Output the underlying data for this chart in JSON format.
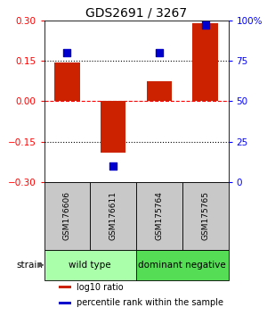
{
  "title": "GDS2691 / 3267",
  "samples": [
    "GSM176606",
    "GSM176611",
    "GSM175764",
    "GSM175765"
  ],
  "log10_ratio": [
    0.143,
    -0.19,
    0.073,
    0.29
  ],
  "percentile_rank": [
    80,
    10,
    80,
    97
  ],
  "ylim_left": [
    -0.3,
    0.3
  ],
  "ylim_right": [
    0,
    100
  ],
  "yticks_left": [
    -0.3,
    -0.15,
    0,
    0.15,
    0.3
  ],
  "yticks_right": [
    0,
    25,
    50,
    75,
    100
  ],
  "ytick_labels_right": [
    "0",
    "25",
    "50",
    "75",
    "100%"
  ],
  "hlines": [
    0.15,
    0.0,
    -0.15
  ],
  "hline_colors": [
    "black",
    "red",
    "black"
  ],
  "bar_color": "#cc2200",
  "dot_color": "#0000cc",
  "strain_groups": [
    {
      "label": "wild type",
      "start": 0,
      "end": 2,
      "color": "#aaffaa"
    },
    {
      "label": "dominant negative",
      "start": 2,
      "end": 4,
      "color": "#55dd55"
    }
  ],
  "legend_items": [
    {
      "color": "#cc2200",
      "label": "log10 ratio"
    },
    {
      "color": "#0000cc",
      "label": "percentile rank within the sample"
    }
  ],
  "background_color": "#ffffff",
  "sample_box_color": "#c8c8c8",
  "title_fontsize": 10,
  "tick_fontsize": 7.5,
  "sample_fontsize": 6.5,
  "strain_fontsize": 7.5,
  "legend_fontsize": 7
}
